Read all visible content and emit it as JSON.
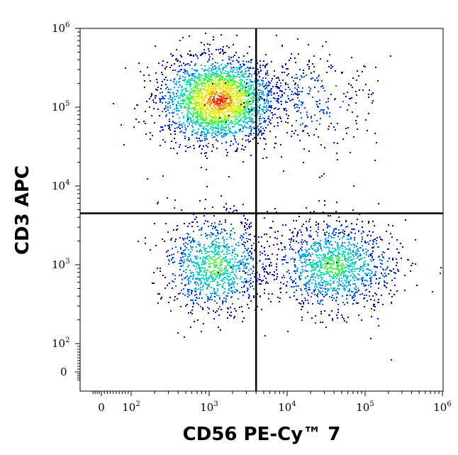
{
  "chart_data": {
    "type": "scatter",
    "plot_style": "flow cytometry density dot plot with quadrant gates",
    "xlabel": "CD56 PE-Cy™ 7",
    "ylabel": "CD3 APC",
    "x_scale": "biexponential (log above ~100)",
    "y_scale": "biexponential (log above ~100)",
    "xlim": [
      -50,
      1000000
    ],
    "ylim": [
      -50,
      1000000
    ],
    "x_ticks": [
      {
        "value": 0,
        "base": "0",
        "exp": ""
      },
      {
        "value": 100,
        "base": "10",
        "exp": "2"
      },
      {
        "value": 1000,
        "base": "10",
        "exp": "3"
      },
      {
        "value": 10000,
        "base": "10",
        "exp": "4"
      },
      {
        "value": 100000,
        "base": "10",
        "exp": "5"
      },
      {
        "value": 1000000,
        "base": "10",
        "exp": "6"
      }
    ],
    "y_ticks": [
      {
        "value": 0,
        "base": "0",
        "exp": ""
      },
      {
        "value": 100,
        "base": "10",
        "exp": "2"
      },
      {
        "value": 1000,
        "base": "10",
        "exp": "3"
      },
      {
        "value": 10000,
        "base": "10",
        "exp": "4"
      },
      {
        "value": 100000,
        "base": "10",
        "exp": "5"
      },
      {
        "value": 1000000,
        "base": "10",
        "exp": "6"
      }
    ],
    "quadrant_gates": {
      "x": 4000,
      "y": 4500
    },
    "populations": [
      {
        "center_x": 1300,
        "center_y": 125000,
        "spread": "0.4/0.3 log decades",
        "relative_density": "high"
      },
      {
        "center_x": 1200,
        "center_y": 1000,
        "spread": "0.35/0.3 log decades",
        "relative_density": "medium"
      },
      {
        "center_x": 40000,
        "center_y": 1000,
        "spread": "0.4/0.3 log decades",
        "relative_density": "medium"
      },
      {
        "center_x": 20000,
        "center_y": 120000,
        "spread": "0.4/0.3 log decades",
        "relative_density": "low"
      }
    ],
    "density_colors": [
      "#0000c8",
      "#0050ff",
      "#00b4ff",
      "#00e6b4",
      "#40ff40",
      "#c8ff00",
      "#ffe600",
      "#ff8c00",
      "#ff2000"
    ],
    "grid": false,
    "legend": "none"
  }
}
